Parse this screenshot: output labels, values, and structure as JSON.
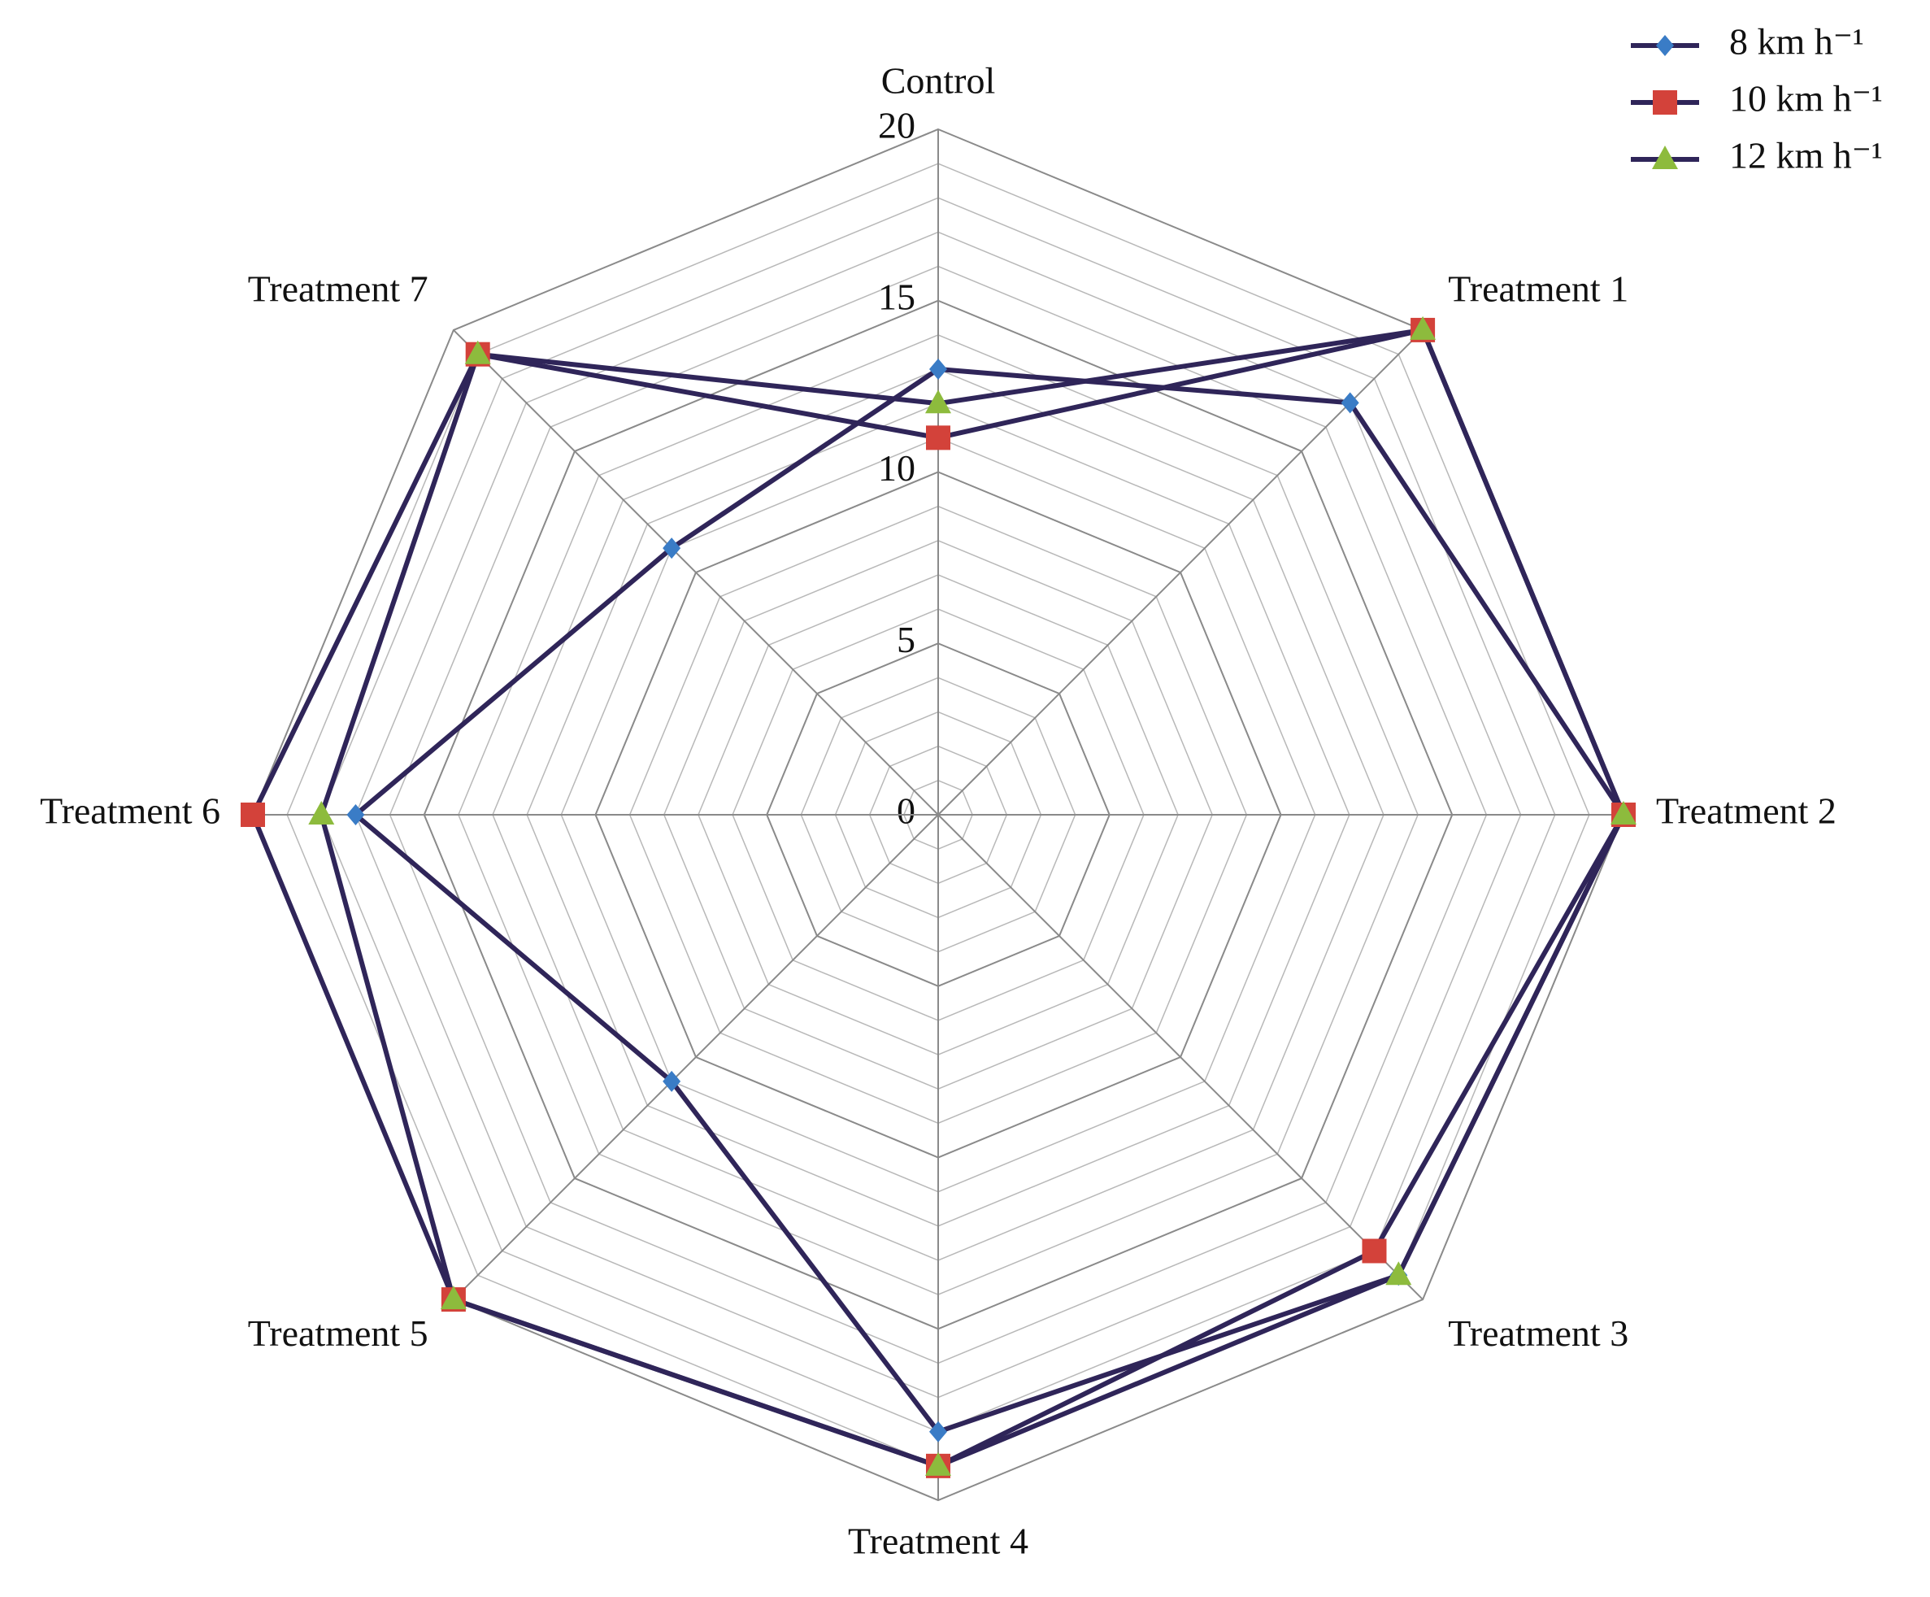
{
  "chart_data": {
    "type": "radar",
    "categories": [
      "Control",
      "Treatment 1",
      "Treatment 2",
      "Treatment 3",
      "Treatment 4",
      "Treatment 5",
      "Treatment 6",
      "Treatment 7"
    ],
    "series": [
      {
        "name": "8 km h⁻¹",
        "color": "#3a7cc6",
        "marker": "diamond",
        "values": [
          13,
          17,
          20,
          19,
          18,
          11,
          17,
          11
        ]
      },
      {
        "name": "10 km h⁻¹",
        "color": "#d3423a",
        "marker": "square",
        "values": [
          11,
          20,
          20,
          18,
          19,
          20,
          20,
          19
        ]
      },
      {
        "name": "12 km h⁻¹",
        "color": "#8dbb3d",
        "marker": "triangle",
        "values": [
          12,
          20,
          20,
          19,
          19,
          20,
          18,
          19
        ]
      }
    ],
    "line_color": "#2f2559",
    "ylim": [
      0,
      20
    ],
    "yticks": [
      0,
      5,
      10,
      15,
      20
    ],
    "minor_grid_step": 1,
    "grid": true,
    "legend": "top-right"
  }
}
